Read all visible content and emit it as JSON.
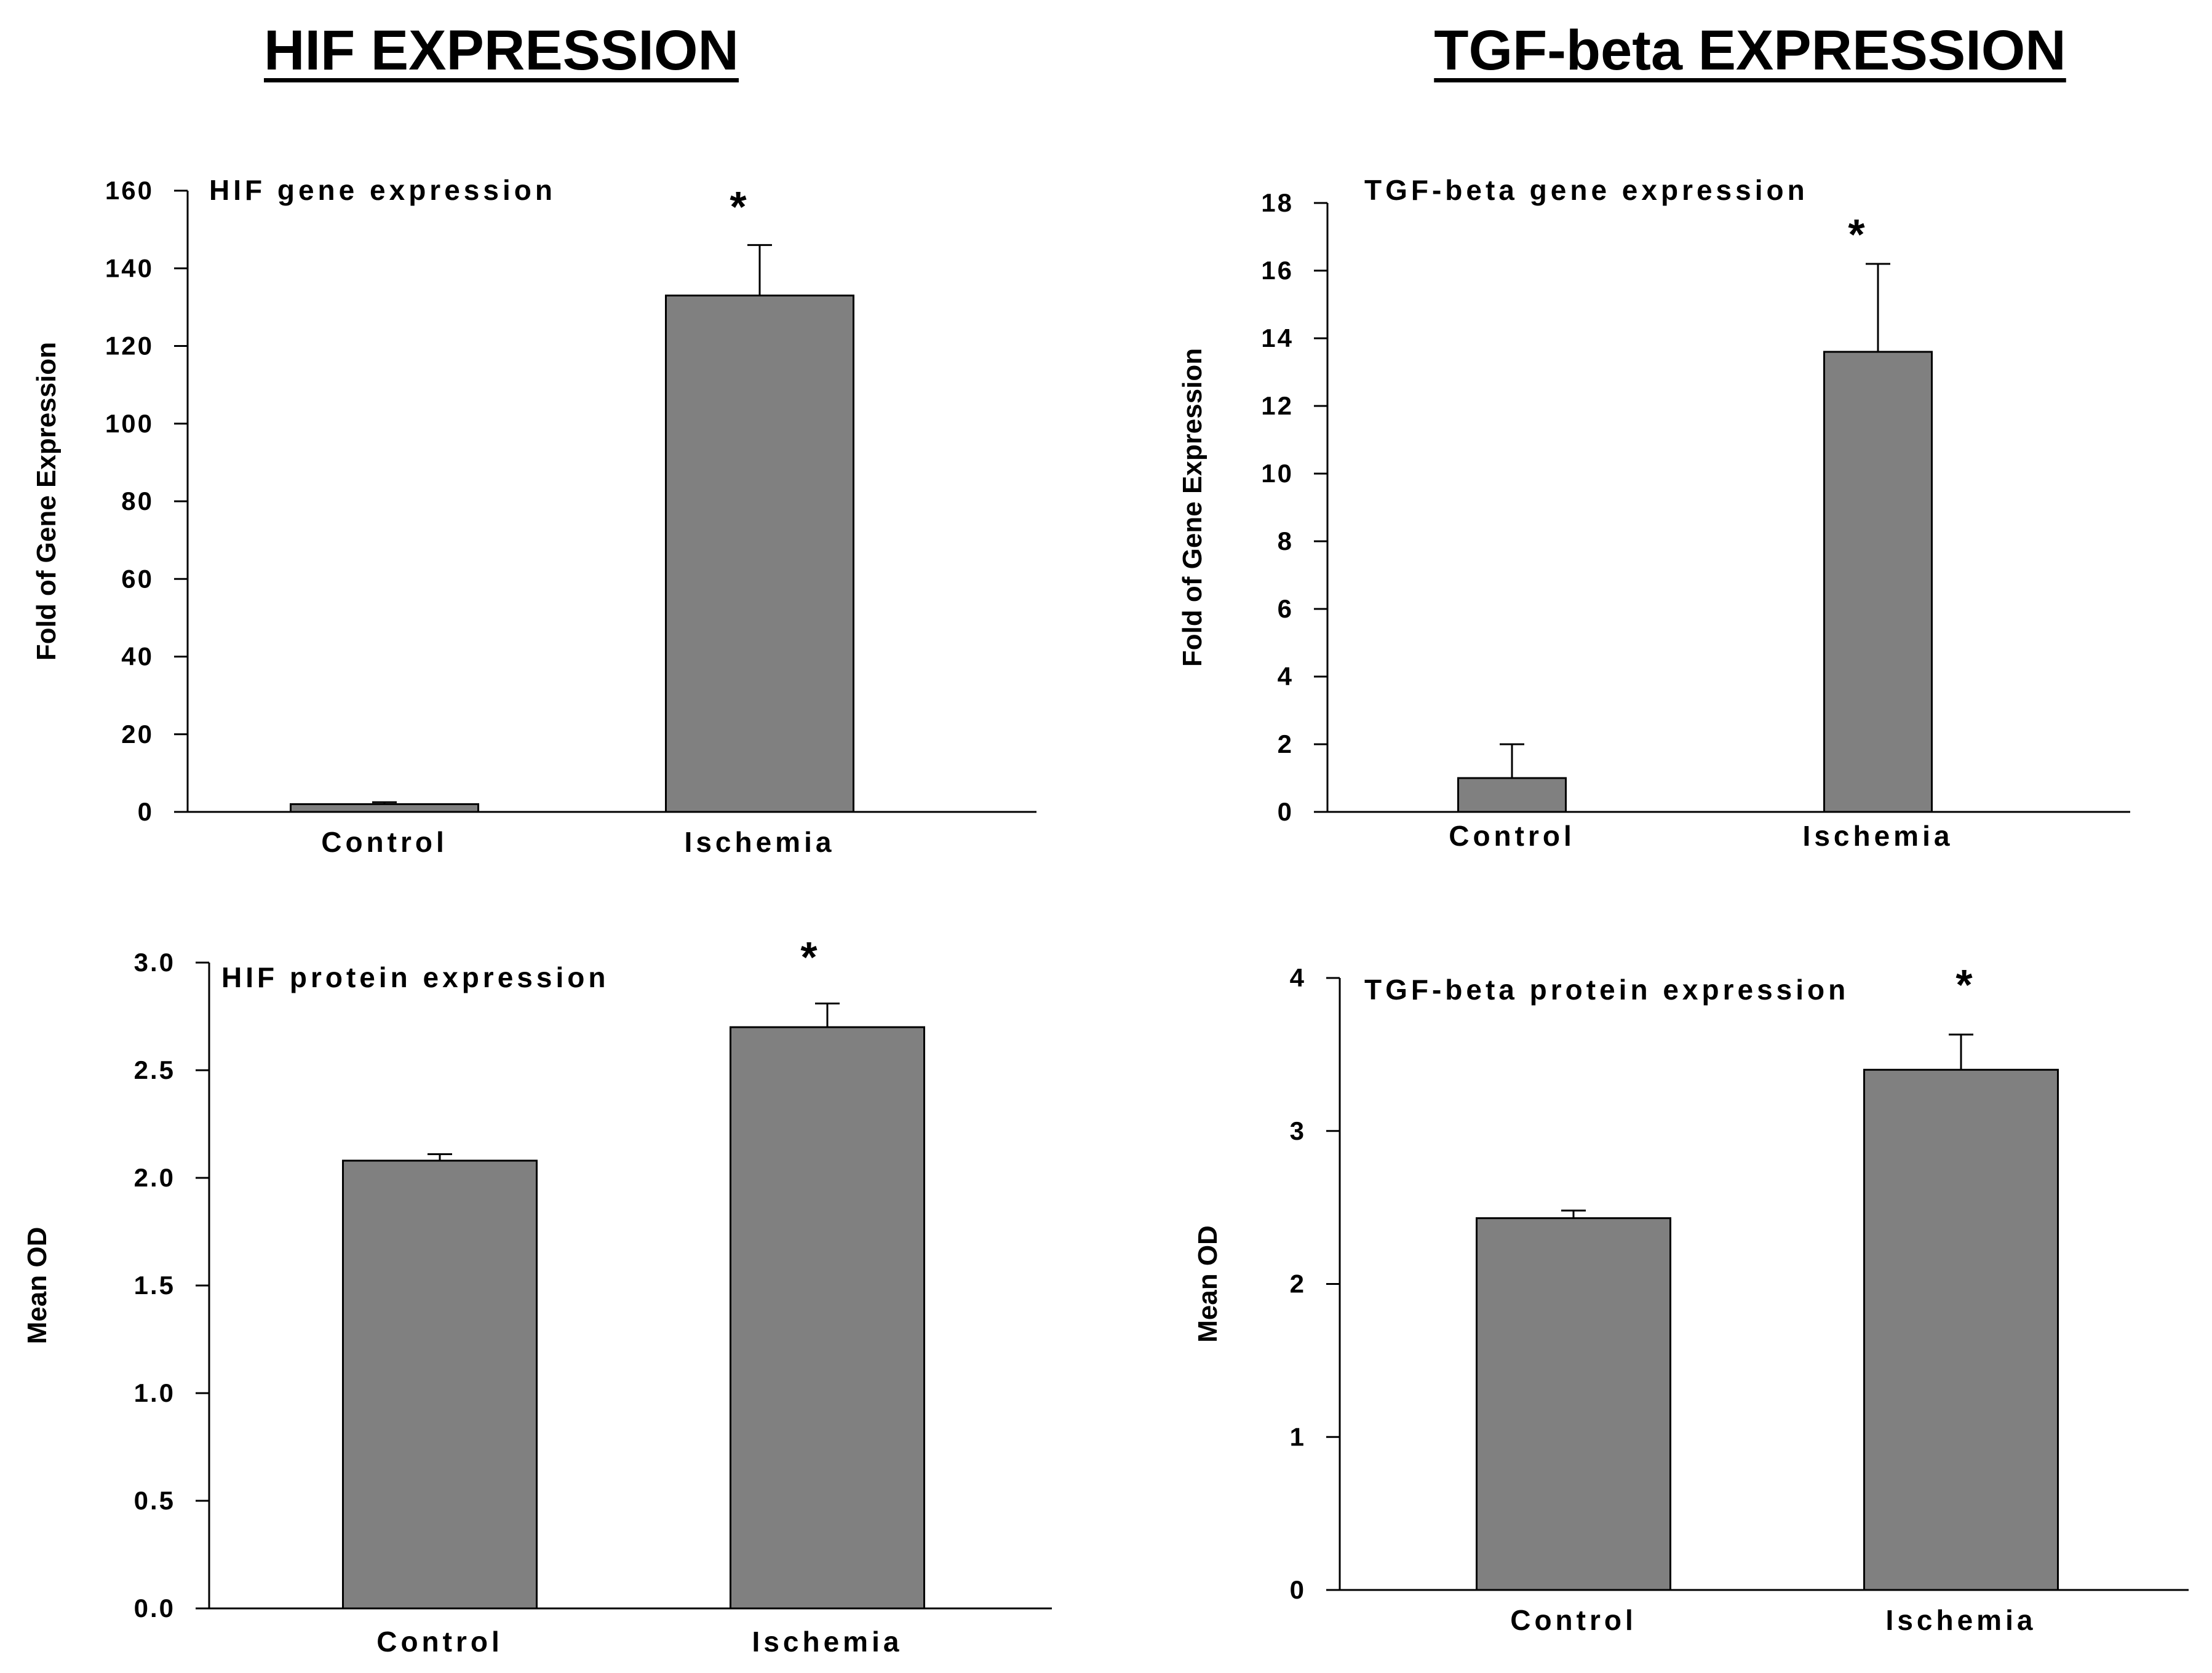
{
  "headings": {
    "left": "HIF EXPRESSION",
    "right": "TGF-beta EXPRESSION"
  },
  "colors": {
    "bar_fill": "#808080",
    "axis": "#000000",
    "text": "#000000"
  },
  "chart_data": [
    {
      "type": "bar",
      "title": "HIF gene expression",
      "xlabel": "",
      "ylabel": "Fold of Gene Expression",
      "categories": [
        "Control",
        "Ischemia"
      ],
      "values": [
        2,
        133
      ],
      "errors": [
        0.5,
        13
      ],
      "significance": [
        "",
        "*"
      ],
      "ylim": [
        0,
        160
      ],
      "yticks": [
        0,
        20,
        40,
        60,
        80,
        100,
        120,
        140,
        160
      ],
      "ytick_labels": [
        "0",
        "20",
        "40",
        "60",
        "80",
        "100",
        "120",
        "140",
        "160"
      ],
      "grid": false
    },
    {
      "type": "bar",
      "title": "TGF-beta gene expression",
      "xlabel": "",
      "ylabel": "Fold of Gene Expression",
      "categories": [
        "Control",
        "Ischemia"
      ],
      "values": [
        1,
        13.6
      ],
      "errors": [
        1,
        2.6
      ],
      "significance": [
        "",
        "*"
      ],
      "ylim": [
        0,
        18
      ],
      "yticks": [
        0,
        2,
        4,
        6,
        8,
        10,
        12,
        14,
        16,
        18
      ],
      "ytick_labels": [
        "0",
        "2",
        "4",
        "6",
        "8",
        "10",
        "12",
        "14",
        "16",
        "18"
      ],
      "grid": false
    },
    {
      "type": "bar",
      "title": "HIF protein expression",
      "xlabel": "",
      "ylabel": "Mean OD",
      "categories": [
        "Control",
        "Ischemia"
      ],
      "values": [
        2.08,
        2.7
      ],
      "errors": [
        0.03,
        0.11
      ],
      "significance": [
        "",
        "*"
      ],
      "ylim": [
        0,
        3.0
      ],
      "yticks": [
        0,
        0.5,
        1.0,
        1.5,
        2.0,
        2.5,
        3.0
      ],
      "ytick_labels": [
        "0.0",
        "0.5",
        "1.0",
        "1.5",
        "2.0",
        "2.5",
        "3.0"
      ],
      "grid": false
    },
    {
      "type": "bar",
      "title": "TGF-beta protein expression",
      "xlabel": "",
      "ylabel": "Mean OD",
      "categories": [
        "Control",
        "Ischemia"
      ],
      "values": [
        2.43,
        3.4
      ],
      "errors": [
        0.05,
        0.23
      ],
      "significance": [
        "",
        "*"
      ],
      "ylim": [
        0,
        4
      ],
      "yticks": [
        0,
        1,
        2,
        3,
        4
      ],
      "ytick_labels": [
        "0",
        "1",
        "2",
        "3",
        "4"
      ],
      "grid": false
    }
  ]
}
